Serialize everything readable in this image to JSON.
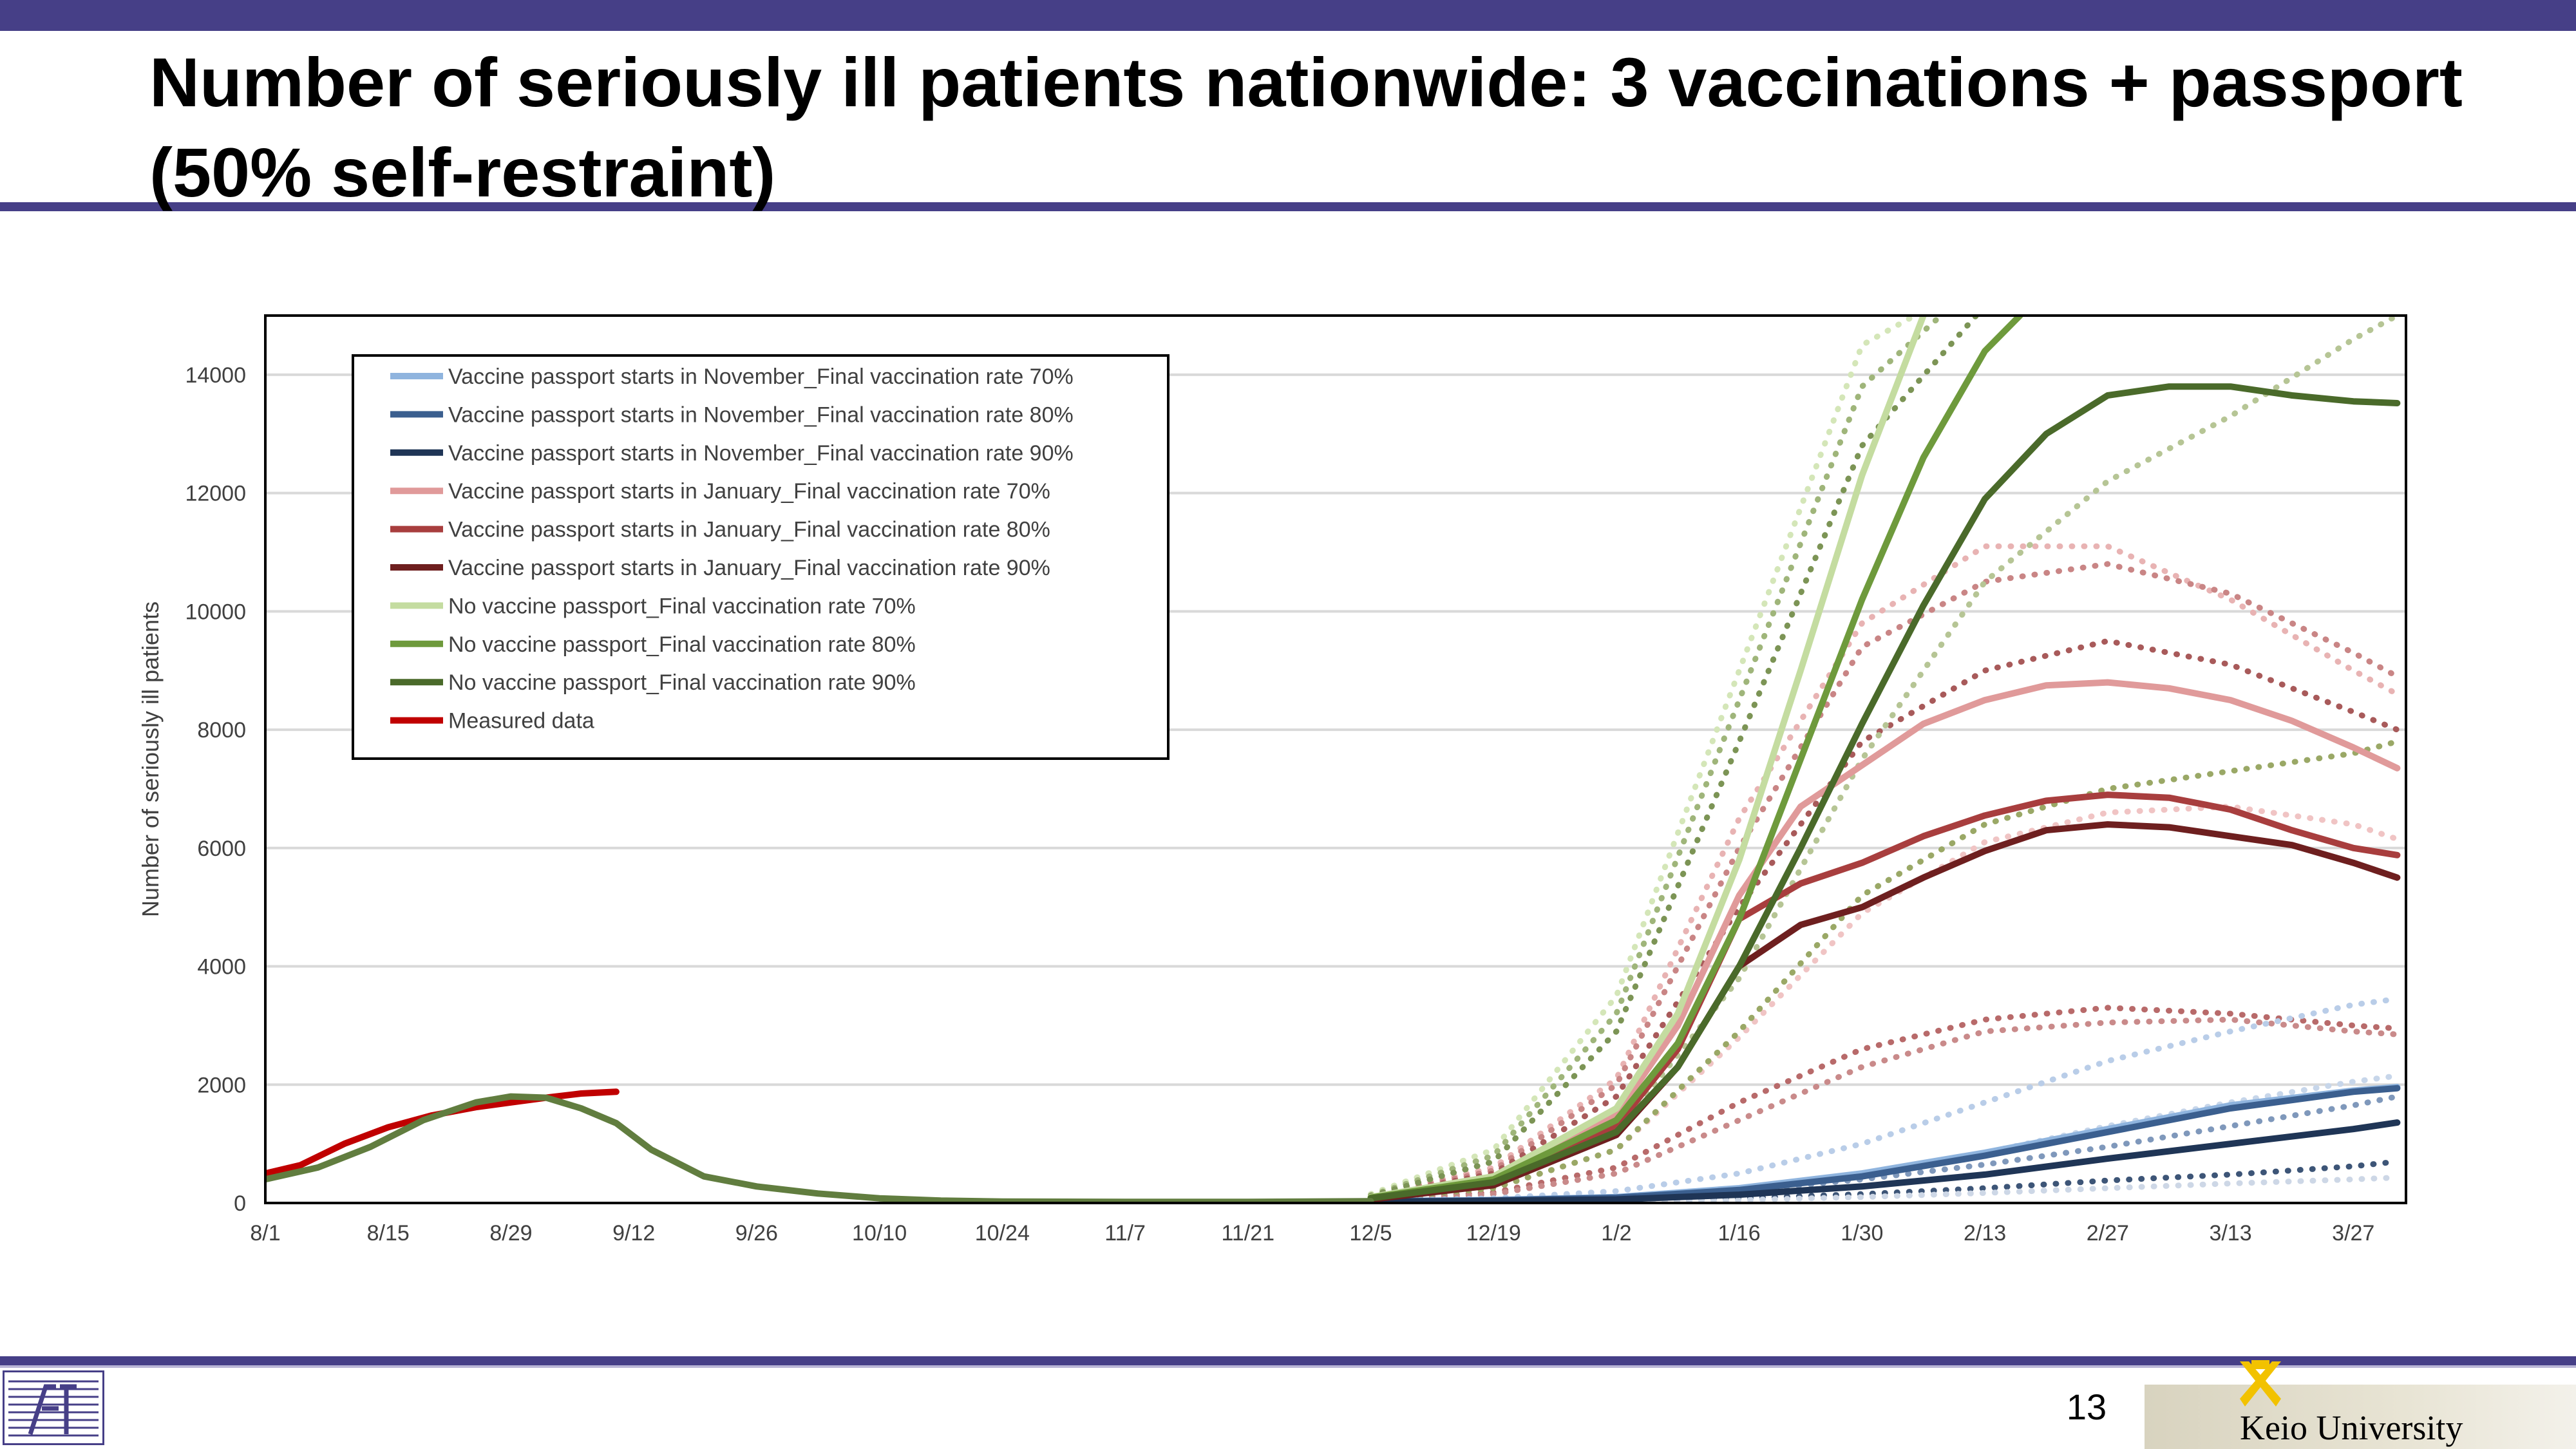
{
  "slide": {
    "title": "Number of seriously ill patients nationwide: 3 vaccinations + passport (50% self-restraint)",
    "page_number": "13",
    "university": "Keio University",
    "accent_color": "#463f87"
  },
  "chart_data": {
    "type": "line",
    "title": "",
    "xlabel": "",
    "ylabel": "Number of seriously ill patients",
    "x_start_date": "2021-08-01",
    "x_ticks": [
      "8/1",
      "8/15",
      "8/29",
      "9/12",
      "9/26",
      "10/10",
      "10/24",
      "11/7",
      "11/21",
      "12/5",
      "12/19",
      "1/2",
      "1/16",
      "1/30",
      "2/13",
      "2/27",
      "3/13",
      "3/27"
    ],
    "ylim": [
      0,
      15000
    ],
    "y_ticks": [
      0,
      2000,
      4000,
      6000,
      8000,
      10000,
      12000,
      14000
    ],
    "grid": "horizontal",
    "legend_position": "top-left",
    "series": [
      {
        "name": "Vaccine passport starts in November_Final vaccination rate 70%",
        "color": "#8fb4de",
        "style": "solid",
        "x": [
          "2021-12-05",
          "2021-12-19",
          "2022-01-02",
          "2022-01-16",
          "2022-01-30",
          "2022-02-13",
          "2022-02-27",
          "2022-03-13",
          "2022-03-27",
          "2022-04-01"
        ],
        "y": [
          30,
          50,
          100,
          250,
          500,
          850,
          1250,
          1650,
          1900,
          1960
        ]
      },
      {
        "name": "Vaccine passport starts in November_Final vaccination rate 80%",
        "color": "#3b5f8f",
        "style": "solid",
        "x": [
          "2021-12-05",
          "2021-12-19",
          "2022-01-02",
          "2022-01-16",
          "2022-01-30",
          "2022-02-13",
          "2022-02-27",
          "2022-03-13",
          "2022-03-27",
          "2022-04-01"
        ],
        "y": [
          25,
          45,
          90,
          220,
          450,
          800,
          1200,
          1600,
          1880,
          1940
        ]
      },
      {
        "name": "Vaccine passport starts in November_Final vaccination rate 90%",
        "color": "#1f3556",
        "style": "solid",
        "x": [
          "2021-12-05",
          "2021-12-19",
          "2022-01-02",
          "2022-01-16",
          "2022-01-30",
          "2022-02-13",
          "2022-02-27",
          "2022-03-13",
          "2022-03-27",
          "2022-04-01"
        ],
        "y": [
          20,
          35,
          60,
          140,
          280,
          480,
          750,
          1000,
          1250,
          1360
        ]
      },
      {
        "name": "Vaccine passport starts in January_Final vaccination rate 70%",
        "color": "#e09a9a",
        "style": "solid",
        "x": [
          "2021-12-05",
          "2021-12-19",
          "2022-01-02",
          "2022-01-09",
          "2022-01-16",
          "2022-01-23",
          "2022-01-30",
          "2022-02-06",
          "2022-02-13",
          "2022-02-20",
          "2022-02-27",
          "2022-03-06",
          "2022-03-13",
          "2022-03-20",
          "2022-03-27",
          "2022-04-01"
        ],
        "y": [
          80,
          400,
          1500,
          3000,
          5200,
          6700,
          7400,
          8100,
          8500,
          8750,
          8800,
          8700,
          8500,
          8150,
          7700,
          7350
        ]
      },
      {
        "name": "Vaccine passport starts in January_Final vaccination rate 80%",
        "color": "#a83e3e",
        "style": "solid",
        "x": [
          "2021-12-05",
          "2021-12-19",
          "2022-01-02",
          "2022-01-09",
          "2022-01-16",
          "2022-01-23",
          "2022-01-30",
          "2022-02-06",
          "2022-02-13",
          "2022-02-20",
          "2022-02-27",
          "2022-03-06",
          "2022-03-13",
          "2022-03-20",
          "2022-03-27",
          "2022-04-01"
        ],
        "y": [
          70,
          350,
          1300,
          2600,
          4800,
          5400,
          5750,
          6200,
          6550,
          6800,
          6900,
          6850,
          6650,
          6300,
          6000,
          5880
        ]
      },
      {
        "name": "Vaccine passport starts in January_Final vaccination rate 90%",
        "color": "#6e1f1f",
        "style": "solid",
        "x": [
          "2021-12-05",
          "2021-12-19",
          "2022-01-02",
          "2022-01-09",
          "2022-01-16",
          "2022-01-23",
          "2022-01-30",
          "2022-02-06",
          "2022-02-13",
          "2022-02-20",
          "2022-02-27",
          "2022-03-06",
          "2022-03-13",
          "2022-03-20",
          "2022-03-27",
          "2022-04-01"
        ],
        "y": [
          60,
          300,
          1150,
          2300,
          4000,
          4700,
          5000,
          5500,
          5950,
          6300,
          6400,
          6350,
          6200,
          6050,
          5750,
          5500
        ]
      },
      {
        "name": "No vaccine passport_Final vaccination rate 70%",
        "color": "#c4dca0",
        "style": "solid",
        "x": [
          "2021-12-05",
          "2021-12-19",
          "2022-01-02",
          "2022-01-09",
          "2022-01-16",
          "2022-01-23",
          "2022-01-30",
          "2022-02-06"
        ],
        "y": [
          100,
          450,
          1600,
          3200,
          5800,
          9000,
          12300,
          15000
        ]
      },
      {
        "name": "No vaccine passport_Final vaccination rate 80%",
        "color": "#6e9a3c",
        "style": "solid",
        "x": [
          "2021-12-05",
          "2021-12-19",
          "2022-01-02",
          "2022-01-09",
          "2022-01-16",
          "2022-01-23",
          "2022-01-30",
          "2022-02-06",
          "2022-02-13",
          "2022-02-17"
        ],
        "y": [
          90,
          400,
          1400,
          2700,
          4800,
          7500,
          10200,
          12600,
          14400,
          15000
        ]
      },
      {
        "name": "No vaccine passport_Final vaccination rate 90%",
        "color": "#4a6a2a",
        "style": "solid",
        "x": [
          "2021-12-05",
          "2021-12-19",
          "2022-01-02",
          "2022-01-09",
          "2022-01-16",
          "2022-01-23",
          "2022-01-30",
          "2022-02-06",
          "2022-02-13",
          "2022-02-20",
          "2022-02-27",
          "2022-03-06",
          "2022-03-13",
          "2022-03-20",
          "2022-03-27",
          "2022-04-01"
        ],
        "y": [
          80,
          350,
          1200,
          2300,
          4000,
          6000,
          8100,
          10100,
          11900,
          13000,
          13650,
          13800,
          13800,
          13650,
          13550,
          13520
        ]
      },
      {
        "name": "Measured data",
        "color": "#c00000",
        "style": "solid",
        "x": [
          "2021-08-01",
          "2021-08-05",
          "2021-08-10",
          "2021-08-15",
          "2021-08-20",
          "2021-08-25",
          "2021-08-29",
          "2021-09-02",
          "2021-09-06",
          "2021-09-10"
        ],
        "y": [
          500,
          640,
          1000,
          1280,
          1480,
          1620,
          1700,
          1780,
          1850,
          1880
        ]
      },
      {
        "name": "",
        "color": "#617d3f",
        "style": "solid",
        "x": [
          "2021-08-01",
          "2021-08-07",
          "2021-08-13",
          "2021-08-19",
          "2021-08-25",
          "2021-08-29",
          "2021-09-02",
          "2021-09-06",
          "2021-09-10",
          "2021-09-14",
          "2021-09-20",
          "2021-09-26",
          "2021-10-03",
          "2021-10-10",
          "2021-10-17",
          "2021-10-24",
          "2021-11-07",
          "2021-11-21",
          "2021-12-05"
        ],
        "y": [
          400,
          600,
          950,
          1400,
          1700,
          1800,
          1780,
          1600,
          1350,
          900,
          450,
          280,
          160,
          80,
          40,
          25,
          20,
          20,
          30
        ]
      },
      {
        "name": "",
        "color": "#e8b3b3",
        "style": "dotted",
        "x": [
          "2021-12-05",
          "2021-12-19",
          "2022-01-02",
          "2022-01-16",
          "2022-01-30",
          "2022-02-13",
          "2022-02-27",
          "2022-03-13",
          "2022-03-27",
          "2022-04-01"
        ],
        "y": [
          120,
          600,
          2100,
          6500,
          9800,
          11100,
          11100,
          10200,
          9000,
          8600
        ]
      },
      {
        "name": "",
        "color": "#c98585",
        "style": "dotted",
        "x": [
          "2021-12-05",
          "2021-12-19",
          "2022-01-02",
          "2022-01-16",
          "2022-01-30",
          "2022-02-13",
          "2022-02-27",
          "2022-03-13",
          "2022-03-27",
          "2022-04-01"
        ],
        "y": [
          110,
          550,
          2000,
          6000,
          9400,
          10500,
          10800,
          10300,
          9300,
          8900
        ]
      },
      {
        "name": "",
        "color": "#a85a5a",
        "style": "dotted",
        "x": [
          "2021-12-05",
          "2021-12-19",
          "2022-01-02",
          "2022-01-16",
          "2022-01-30",
          "2022-02-13",
          "2022-02-27",
          "2022-03-13",
          "2022-03-27",
          "2022-04-01"
        ],
        "y": [
          100,
          500,
          1800,
          5000,
          7800,
          9000,
          9500,
          9100,
          8300,
          8000
        ]
      },
      {
        "name": "",
        "color": "#f0c4c4",
        "style": "dotted",
        "x": [
          "2021-12-05",
          "2021-12-19",
          "2022-01-02",
          "2022-01-16",
          "2022-01-30",
          "2022-02-13",
          "2022-02-27",
          "2022-03-13",
          "2022-03-27",
          "2022-04-01"
        ],
        "y": [
          60,
          250,
          900,
          2800,
          4900,
          6100,
          6600,
          6700,
          6400,
          6150
        ]
      },
      {
        "name": "",
        "color": "#b86a6a",
        "style": "dotted",
        "x": [
          "2021-12-05",
          "2021-12-19",
          "2022-01-02",
          "2022-01-16",
          "2022-01-30",
          "2022-02-13",
          "2022-02-27",
          "2022-03-13",
          "2022-03-27",
          "2022-04-01"
        ],
        "y": [
          50,
          180,
          600,
          1700,
          2600,
          3100,
          3300,
          3200,
          3000,
          2950
        ]
      },
      {
        "name": "",
        "color": "#c98a8a",
        "style": "dotted",
        "x": [
          "2021-12-05",
          "2021-12-19",
          "2022-01-02",
          "2022-01-16",
          "2022-01-30",
          "2022-02-13",
          "2022-02-27",
          "2022-03-13",
          "2022-03-27",
          "2022-04-01"
        ],
        "y": [
          40,
          150,
          500,
          1400,
          2300,
          2900,
          3050,
          3100,
          2900,
          2850
        ]
      },
      {
        "name": "",
        "color": "#d4e6b8",
        "style": "dotted",
        "x": [
          "2021-12-05",
          "2021-12-19",
          "2022-01-02",
          "2022-01-16",
          "2022-01-30",
          "2022-02-05"
        ],
        "y": [
          150,
          900,
          3500,
          9000,
          14500,
          15000
        ]
      },
      {
        "name": "",
        "color": "#9fb57a",
        "style": "dotted",
        "x": [
          "2021-12-05",
          "2021-12-19",
          "2022-01-02",
          "2022-01-16",
          "2022-01-30",
          "2022-02-08"
        ],
        "y": [
          130,
          800,
          3200,
          8500,
          13800,
          15000
        ]
      },
      {
        "name": "",
        "color": "#7c9455",
        "style": "dotted",
        "x": [
          "2021-12-05",
          "2021-12-19",
          "2022-01-02",
          "2022-01-16",
          "2022-01-30",
          "2022-02-12"
        ],
        "y": [
          120,
          700,
          2900,
          7800,
          12800,
          15000
        ]
      },
      {
        "name": "",
        "color": "#b6c595",
        "style": "dotted",
        "x": [
          "2021-12-05",
          "2021-12-19",
          "2022-01-02",
          "2022-01-16",
          "2022-01-30",
          "2022-02-13",
          "2022-02-27",
          "2022-03-13",
          "2022-03-27",
          "2022-04-01"
        ],
        "y": [
          70,
          300,
          1200,
          3800,
          7500,
          10500,
          12200,
          13300,
          14600,
          15000
        ]
      },
      {
        "name": "",
        "color": "#9aa866",
        "style": "dotted",
        "x": [
          "2021-12-05",
          "2021-12-19",
          "2022-01-02",
          "2022-01-16",
          "2022-01-30",
          "2022-02-13",
          "2022-02-27",
          "2022-03-13",
          "2022-03-27",
          "2022-04-01"
        ],
        "y": [
          60,
          250,
          900,
          2900,
          5200,
          6400,
          7000,
          7300,
          7600,
          7800
        ]
      },
      {
        "name": "",
        "color": "#b9cde8",
        "style": "dotted",
        "x": [
          "2021-12-05",
          "2021-12-19",
          "2022-01-02",
          "2022-01-16",
          "2022-01-30",
          "2022-02-13",
          "2022-02-27",
          "2022-03-13",
          "2022-03-27",
          "2022-04-01"
        ],
        "y": [
          30,
          80,
          200,
          500,
          1000,
          1700,
          2400,
          2900,
          3350,
          3450
        ]
      },
      {
        "name": "",
        "color": "#c7d6ea",
        "style": "dotted",
        "x": [
          "2021-12-05",
          "2021-12-19",
          "2022-01-02",
          "2022-01-16",
          "2022-01-30",
          "2022-02-13",
          "2022-02-27",
          "2022-03-13",
          "2022-03-27",
          "2022-04-01"
        ],
        "y": [
          20,
          50,
          110,
          250,
          500,
          850,
          1300,
          1700,
          2050,
          2150
        ]
      },
      {
        "name": "",
        "color": "#7f98bb",
        "style": "dotted",
        "x": [
          "2021-12-05",
          "2021-12-19",
          "2022-01-02",
          "2022-01-16",
          "2022-01-30",
          "2022-02-13",
          "2022-02-27",
          "2022-03-13",
          "2022-03-27",
          "2022-04-01"
        ],
        "y": [
          15,
          40,
          90,
          200,
          400,
          650,
          950,
          1300,
          1650,
          1800
        ]
      },
      {
        "name": "",
        "color": "#3d5577",
        "style": "dotted",
        "x": [
          "2021-12-05",
          "2021-12-19",
          "2022-01-02",
          "2022-01-16",
          "2022-01-30",
          "2022-02-13",
          "2022-02-27",
          "2022-03-13",
          "2022-03-27",
          "2022-04-01"
        ],
        "y": [
          10,
          20,
          40,
          80,
          150,
          250,
          380,
          480,
          620,
          700
        ]
      },
      {
        "name": "",
        "color": "#cdd7e6",
        "style": "dotted",
        "x": [
          "2021-12-05",
          "2021-12-19",
          "2022-01-02",
          "2022-01-16",
          "2022-01-30",
          "2022-02-13",
          "2022-02-27",
          "2022-03-13",
          "2022-03-27",
          "2022-04-01"
        ],
        "y": [
          5,
          10,
          25,
          50,
          100,
          170,
          250,
          330,
          400,
          430
        ]
      }
    ]
  }
}
